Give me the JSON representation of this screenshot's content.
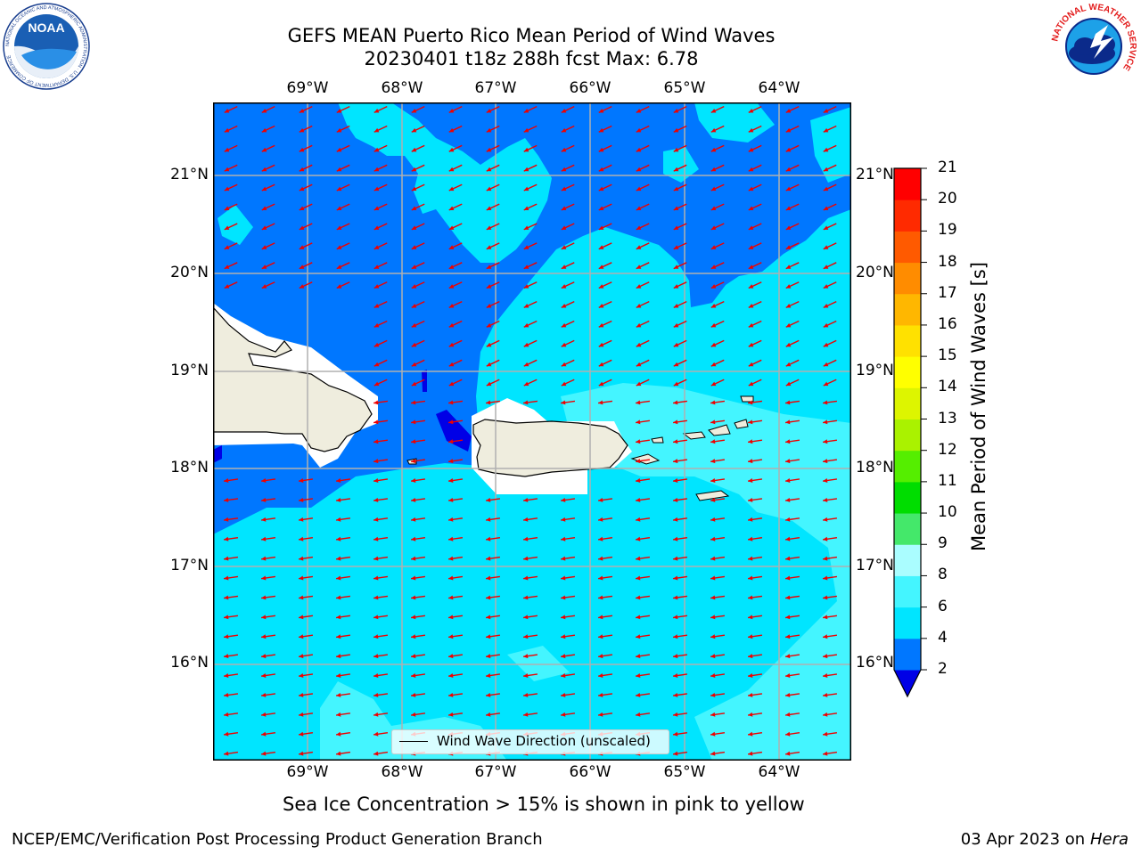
{
  "header": {
    "title_line1": "GEFS MEAN Puerto Rico Mean Period of Wind Waves",
    "title_line2": "20230401 t18z 288h fcst   Max: 6.78"
  },
  "axes": {
    "lon_labels": [
      "69°W",
      "68°W",
      "67°W",
      "66°W",
      "65°W",
      "64°W"
    ],
    "lat_labels": [
      "21°N",
      "20°N",
      "19°N",
      "18°N",
      "17°N",
      "16°N"
    ]
  },
  "colorbar": {
    "title": "Mean Period of Wind Waves [s]",
    "levels": [
      "2",
      "4",
      "6",
      "8",
      "9",
      "10",
      "11",
      "12",
      "13",
      "14",
      "15",
      "16",
      "17",
      "18",
      "19",
      "20",
      "21"
    ],
    "colors": [
      "#0000e6",
      "#0077ff",
      "#00e5ff",
      "#44f5ff",
      "#aafdff",
      "#44e86a",
      "#00dd00",
      "#55ee00",
      "#aaf200",
      "#ddf500",
      "#ffff00",
      "#ffe100",
      "#ffb700",
      "#ff8c00",
      "#ff5a00",
      "#ff2a00",
      "#ff0000"
    ]
  },
  "map": {
    "legend_label": "Wind Wave Direction (unscaled)",
    "colors": {
      "deep": "#0000e6",
      "dark": "#0077ff",
      "mid": "#00e5ff",
      "light": "#44f5ff",
      "land": "#efedde",
      "arrow": "#ee0000",
      "grid": "#b0b0b0"
    }
  },
  "subcaption": "Sea Ice Concentration > 15% is shown in pink to yellow",
  "footer": {
    "left": "NCEP/EMC/Verification Post Processing Product Generation Branch",
    "date": "03 Apr 2023 on ",
    "machine": "Hera"
  },
  "logos": {
    "noaa_text": "NOAA",
    "noaa_ring": "NATIONAL OCEANIC AND ATMOSPHERIC ADMINISTRATION · U.S. DEPARTMENT OF COMMERCE",
    "nws_ring": "NATIONAL WEATHER SERVICE"
  }
}
